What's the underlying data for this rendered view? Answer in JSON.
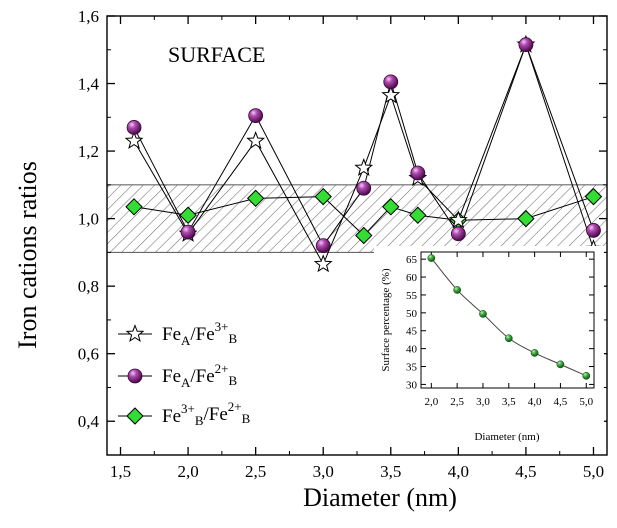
{
  "chart_data": [
    {
      "type": "line",
      "annotation": "SURFACE",
      "xlabel": "Diameter (nm)",
      "ylabel": "Iron cations ratios",
      "xlim": [
        1.4,
        5.1
      ],
      "ylim": [
        0.3,
        1.6
      ],
      "xticks": [
        "1,5",
        "2,0",
        "2,5",
        "3,0",
        "3,5",
        "4,0",
        "4,5",
        "5,0"
      ],
      "yticks": [
        "0,4",
        "0,6",
        "0,8",
        "1,0",
        "1,2",
        "1,4",
        "1,6"
      ],
      "shaded_band": [
        0.9,
        1.1
      ],
      "legend_position": "bottom-left",
      "series": [
        {
          "name": "Fe_A/Fe^{3+}_B",
          "marker": "star",
          "color": "#ffffff",
          "x": [
            1.6,
            2.0,
            2.5,
            3.0,
            3.3,
            3.5,
            3.7,
            4.0,
            4.5,
            5.0
          ],
          "y": [
            1.23,
            0.955,
            1.23,
            0.865,
            1.15,
            1.365,
            1.12,
            0.995,
            1.515,
            0.91
          ]
        },
        {
          "name": "Fe_A/Fe^{2+}_B",
          "marker": "sphere",
          "color": "#8e2a8e",
          "x": [
            1.6,
            2.0,
            2.5,
            3.0,
            3.3,
            3.5,
            3.7,
            4.0,
            4.5,
            5.0
          ],
          "y": [
            1.27,
            0.96,
            1.305,
            0.92,
            1.09,
            1.405,
            1.135,
            0.955,
            1.515,
            0.965
          ]
        },
        {
          "name": "Fe^{3+}_B/Fe^{2+}_B",
          "marker": "diamond",
          "color": "#33dd33",
          "x": [
            1.6,
            2.0,
            2.5,
            3.0,
            3.3,
            3.5,
            3.7,
            4.0,
            4.5,
            5.0
          ],
          "y": [
            1.035,
            1.01,
            1.06,
            1.065,
            0.95,
            1.035,
            1.01,
            0.995,
            1.0,
            1.065
          ]
        }
      ]
    },
    {
      "type": "line",
      "inset": true,
      "xlabel": "Diameter (nm)",
      "ylabel": "Surface percentage (%)",
      "xlim": [
        1.8,
        5.15
      ],
      "ylim": [
        29,
        67
      ],
      "xticks": [
        "2,0",
        "2,5",
        "3,0",
        "3,5",
        "4,0",
        "4,5",
        "5,0"
      ],
      "yticks": [
        "30",
        "35",
        "40",
        "45",
        "50",
        "55",
        "60",
        "65"
      ],
      "color": "#2aa02a",
      "x": [
        2.0,
        2.5,
        3.0,
        3.5,
        4.0,
        4.5,
        5.0
      ],
      "y": [
        65.3,
        56.4,
        49.7,
        42.9,
        38.8,
        35.6,
        32.4
      ]
    }
  ]
}
